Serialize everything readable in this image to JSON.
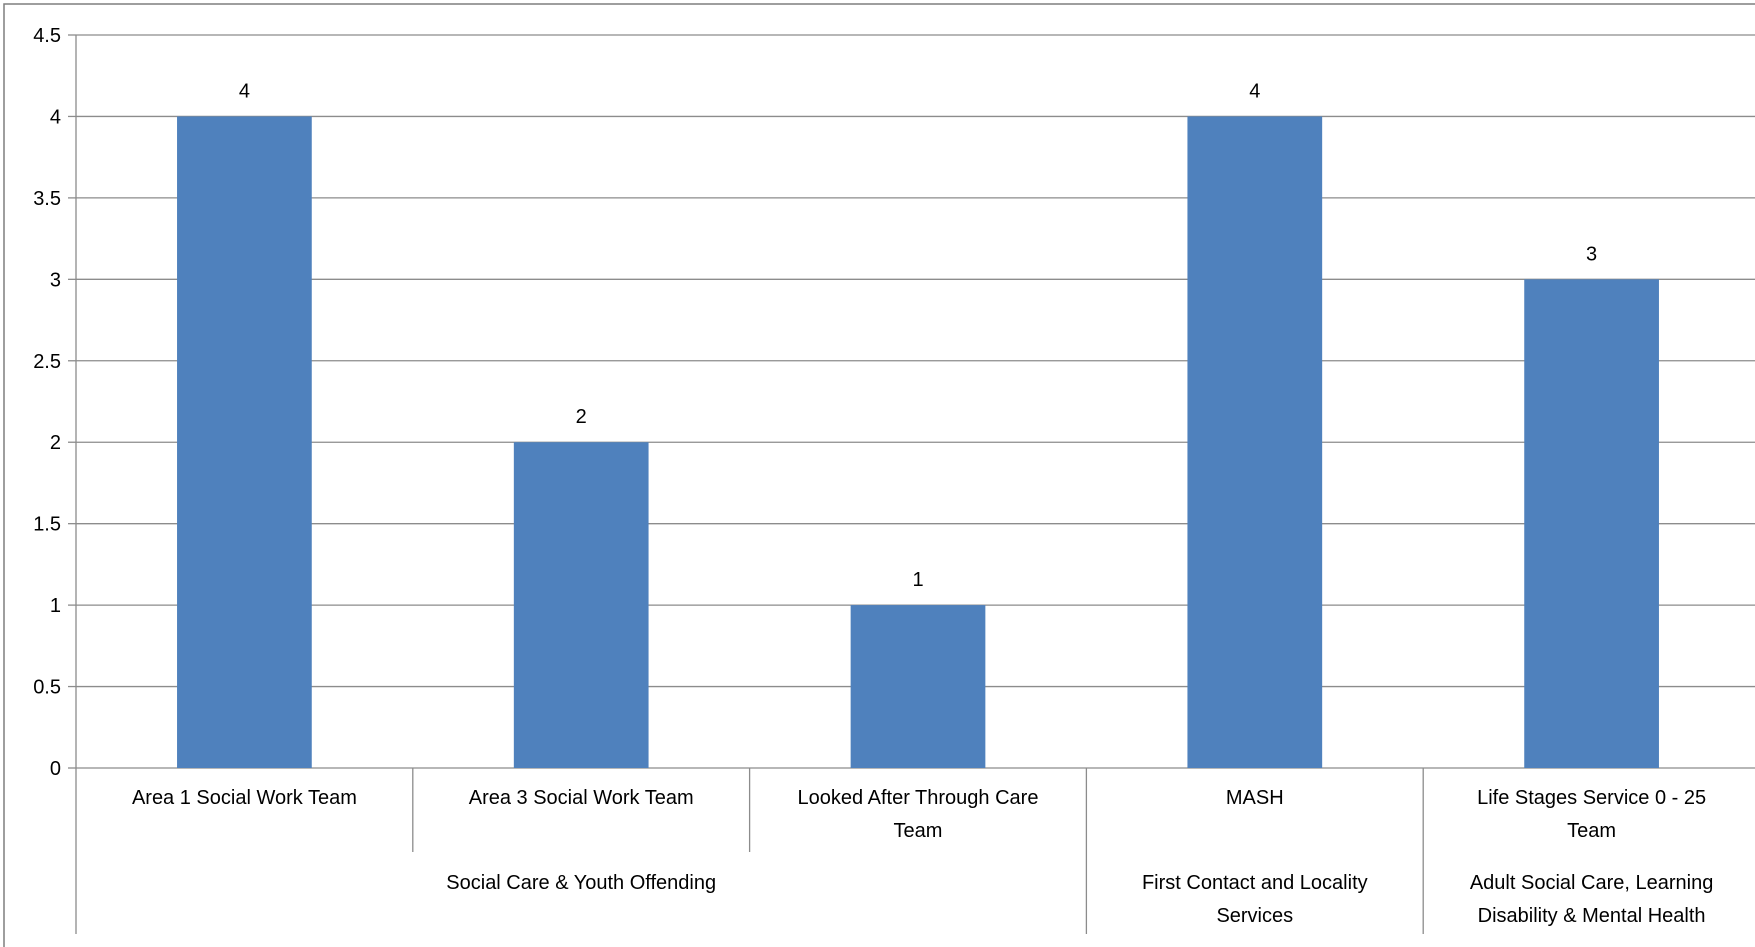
{
  "chart_data": {
    "type": "bar",
    "title": "",
    "xlabel": "",
    "ylabel": "",
    "ylim": [
      0,
      4.5
    ],
    "y_ticks": [
      0,
      0.5,
      1,
      1.5,
      2,
      2.5,
      3,
      3.5,
      4,
      4.5
    ],
    "y_tick_labels": [
      "0",
      "0.5",
      "1",
      "1.5",
      "2",
      "2.5",
      "3",
      "3.5",
      "4",
      "4.5"
    ],
    "grid": true,
    "legend": "none",
    "categories": [
      {
        "lines": [
          "Area 1 Social Work Team"
        ]
      },
      {
        "lines": [
          "Area 3 Social Work Team"
        ]
      },
      {
        "lines": [
          "Looked After Through Care",
          "Team"
        ]
      },
      {
        "lines": [
          "MASH"
        ]
      },
      {
        "lines": [
          "Life Stages Service 0 - 25",
          "Team"
        ]
      }
    ],
    "groups": [
      {
        "lines": [
          "Social Care & Youth Offending"
        ],
        "categories": [
          0,
          1,
          2
        ]
      },
      {
        "lines": [
          "First Contact and Locality",
          "Services"
        ],
        "categories": [
          3
        ]
      },
      {
        "lines": [
          "Adult Social Care, Learning",
          "Disability & Mental Health"
        ],
        "categories": [
          4
        ]
      }
    ],
    "values": [
      4,
      2,
      1,
      4,
      3
    ],
    "data_labels": [
      "4",
      "2",
      "1",
      "4",
      "3"
    ],
    "colors": {
      "bar": "#4F81BD",
      "grid": "#8C8C8C",
      "axis": "#8C8C8C",
      "border": "#7F7F7F"
    }
  }
}
